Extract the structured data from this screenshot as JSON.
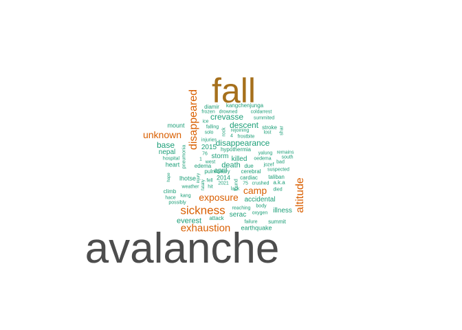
{
  "words": [
    {
      "text": "avalanche",
      "color": "#4d4d4d"
    },
    {
      "text": "fall",
      "color": "#a6701c"
    },
    {
      "text": "disappeared",
      "color": "#d95f02"
    },
    {
      "text": "altitude",
      "color": "#d95f02"
    },
    {
      "text": "sickness",
      "color": "#d95f02"
    },
    {
      "text": "exhaustion",
      "color": "#d95f02"
    },
    {
      "text": "exposure",
      "color": "#d95f02"
    },
    {
      "text": "camp",
      "color": "#d95f02"
    },
    {
      "text": "unknown",
      "color": "#d95f02"
    },
    {
      "text": "disappearance",
      "color": "#1b9e77"
    },
    {
      "text": "crevasse",
      "color": "#1b9e77"
    },
    {
      "text": "descent",
      "color": "#1b9e77"
    },
    {
      "text": "base",
      "color": "#1b9e77"
    },
    {
      "text": "everest",
      "color": "#1b9e77"
    },
    {
      "text": "accidental",
      "color": "#1b9e77"
    },
    {
      "text": "illness",
      "color": "#1b9e77"
    },
    {
      "text": "serac",
      "color": "#1b9e77"
    },
    {
      "text": "death",
      "color": "#1b9e77"
    },
    {
      "text": "killed",
      "color": "#1b9e77"
    },
    {
      "text": "storm",
      "color": "#1b9e77"
    },
    {
      "text": "nepal",
      "color": "#1b9e77"
    },
    {
      "text": "heart",
      "color": "#1b9e77"
    },
    {
      "text": "mount",
      "color": "#1b9e77"
    },
    {
      "text": "2015",
      "color": "#1b9e77"
    },
    {
      "text": "april",
      "color": "#1b9e77"
    },
    {
      "text": "2014",
      "color": "#1b9e77"
    },
    {
      "text": "lhotse",
      "color": "#1b9e77"
    },
    {
      "text": "diamir",
      "color": "#1b9e77"
    },
    {
      "text": "kangchenjunga",
      "color": "#1b9e77"
    },
    {
      "text": "frozen",
      "color": "#1b9e77"
    },
    {
      "text": "drowned",
      "color": "#1b9e77"
    },
    {
      "text": "coldarrest",
      "color": "#1b9e77"
    },
    {
      "text": "summited",
      "color": "#1b9e77"
    },
    {
      "text": "ice",
      "color": "#1b9e77"
    },
    {
      "text": "falling",
      "color": "#1b9e77"
    },
    {
      "text": "rejoining",
      "color": "#1b9e77"
    },
    {
      "text": "stroke",
      "color": "#1b9e77"
    },
    {
      "text": "solo",
      "color": "#1b9e77"
    },
    {
      "text": "lost",
      "color": "#1b9e77"
    },
    {
      "text": "4",
      "color": "#1b9e77"
    },
    {
      "text": "frostbite",
      "color": "#1b9e77"
    },
    {
      "text": "rock",
      "color": "#1b9e77"
    },
    {
      "text": "shar",
      "color": "#1b9e77"
    },
    {
      "text": "injuries",
      "color": "#1b9e77"
    },
    {
      "text": "hypothermia",
      "color": "#1b9e77"
    },
    {
      "text": "76",
      "color": "#1b9e77"
    },
    {
      "text": "yalung",
      "color": "#1b9e77"
    },
    {
      "text": "remains",
      "color": "#1b9e77"
    },
    {
      "text": "hospital",
      "color": "#1b9e77"
    },
    {
      "text": "1",
      "color": "#1b9e77"
    },
    {
      "text": "west",
      "color": "#1b9e77"
    },
    {
      "text": "oedema",
      "color": "#1b9e77"
    },
    {
      "text": "south",
      "color": "#1b9e77"
    },
    {
      "text": "edema",
      "color": "#1b9e77"
    },
    {
      "text": "jozef",
      "color": "#1b9e77"
    },
    {
      "text": "bad",
      "color": "#1b9e77"
    },
    {
      "text": "due",
      "color": "#1b9e77"
    },
    {
      "text": "suspected",
      "color": "#1b9e77"
    },
    {
      "text": "pulmonary",
      "color": "#1b9e77"
    },
    {
      "text": "cerebral",
      "color": "#1b9e77"
    },
    {
      "text": "taliban",
      "color": "#1b9e77"
    },
    {
      "text": "fell",
      "color": "#1b9e77"
    },
    {
      "text": "cardiac",
      "color": "#1b9e77"
    },
    {
      "text": "2021",
      "color": "#1b9e77"
    },
    {
      "text": "75",
      "color": "#1b9e77"
    },
    {
      "text": "crushed",
      "color": "#1b9e77"
    },
    {
      "text": "a.k.a",
      "color": "#1b9e77"
    },
    {
      "text": "weather",
      "color": "#1b9e77"
    },
    {
      "text": "hit",
      "color": "#1b9e77"
    },
    {
      "text": "lack",
      "color": "#1b9e77"
    },
    {
      "text": "died",
      "color": "#1b9e77"
    },
    {
      "text": "climb",
      "color": "#1b9e77"
    },
    {
      "text": "kang",
      "color": "#1b9e77"
    },
    {
      "text": "hace",
      "color": "#1b9e77"
    },
    {
      "text": "possibly",
      "color": "#1b9e77"
    },
    {
      "text": "reaching",
      "color": "#1b9e77"
    },
    {
      "text": "body",
      "color": "#1b9e77"
    },
    {
      "text": "oxygen",
      "color": "#1b9e77"
    },
    {
      "text": "attack",
      "color": "#1b9e77"
    },
    {
      "text": "failure",
      "color": "#1b9e77"
    },
    {
      "text": "summit",
      "color": "#1b9e77"
    },
    {
      "text": "earthquake",
      "color": "#1b9e77"
    },
    {
      "text": "pneumonia",
      "color": "#1b9e77"
    },
    {
      "text": "hape",
      "color": "#1b9e77"
    },
    {
      "text": "found",
      "color": "#1b9e77"
    },
    {
      "text": "fatally",
      "color": "#1b9e77"
    },
    {
      "text": "injury",
      "color": "#1b9e77"
    }
  ]
}
